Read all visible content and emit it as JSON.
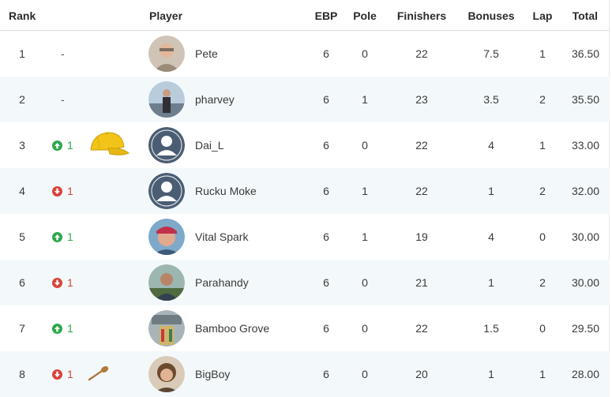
{
  "header": {
    "rank": "Rank",
    "player": "Player",
    "ebp": "EBP",
    "pole": "Pole",
    "finishers": "Finishers",
    "bonuses": "Bonuses",
    "lap": "Lap",
    "total": "Total"
  },
  "rows": [
    {
      "rank": "1",
      "change_dir": "none",
      "change_text": "-",
      "award": "none",
      "avatar": "photo-pete",
      "name": "Pete",
      "ebp": "6",
      "pole": "0",
      "finishers": "22",
      "bonuses": "7.5",
      "lap": "1",
      "total": "36.50"
    },
    {
      "rank": "2",
      "change_dir": "none",
      "change_text": "-",
      "award": "none",
      "avatar": "photo-pharvey",
      "name": "pharvey",
      "ebp": "6",
      "pole": "1",
      "finishers": "23",
      "bonuses": "3.5",
      "lap": "2",
      "total": "35.50"
    },
    {
      "rank": "3",
      "change_dir": "up",
      "change_text": "1",
      "award": "yellow-cap-icon",
      "avatar": "default-avatar",
      "name": "Dai_L",
      "ebp": "6",
      "pole": "0",
      "finishers": "22",
      "bonuses": "4",
      "lap": "1",
      "total": "33.00"
    },
    {
      "rank": "4",
      "change_dir": "down",
      "change_text": "1",
      "award": "none",
      "avatar": "default-avatar",
      "name": "Rucku Moke",
      "ebp": "6",
      "pole": "1",
      "finishers": "22",
      "bonuses": "1",
      "lap": "2",
      "total": "32.00"
    },
    {
      "rank": "5",
      "change_dir": "up",
      "change_text": "1",
      "award": "none",
      "avatar": "photo-vital-spark",
      "name": "Vital Spark",
      "ebp": "6",
      "pole": "1",
      "finishers": "19",
      "bonuses": "4",
      "lap": "0",
      "total": "30.00"
    },
    {
      "rank": "6",
      "change_dir": "down",
      "change_text": "1",
      "award": "none",
      "avatar": "photo-parahandy",
      "name": "Parahandy",
      "ebp": "6",
      "pole": "0",
      "finishers": "21",
      "bonuses": "1",
      "lap": "2",
      "total": "30.00"
    },
    {
      "rank": "7",
      "change_dir": "up",
      "change_text": "1",
      "award": "none",
      "avatar": "photo-bamboo-grove",
      "name": "Bamboo Grove",
      "ebp": "6",
      "pole": "0",
      "finishers": "22",
      "bonuses": "1.5",
      "lap": "0",
      "total": "29.50"
    },
    {
      "rank": "8",
      "change_dir": "down",
      "change_text": "1",
      "award": "wooden-spoon-icon",
      "avatar": "photo-bigboy",
      "name": "BigBoy",
      "ebp": "6",
      "pole": "0",
      "finishers": "20",
      "bonuses": "1",
      "lap": "1",
      "total": "28.00"
    }
  ],
  "colors": {
    "up": "#2fa84f",
    "down": "#d9443c",
    "row_alt_bg": "#f3f9fb",
    "default_avatar": "#4a5d73",
    "cap": "#f2c318",
    "spoon": "#b07a3c"
  }
}
